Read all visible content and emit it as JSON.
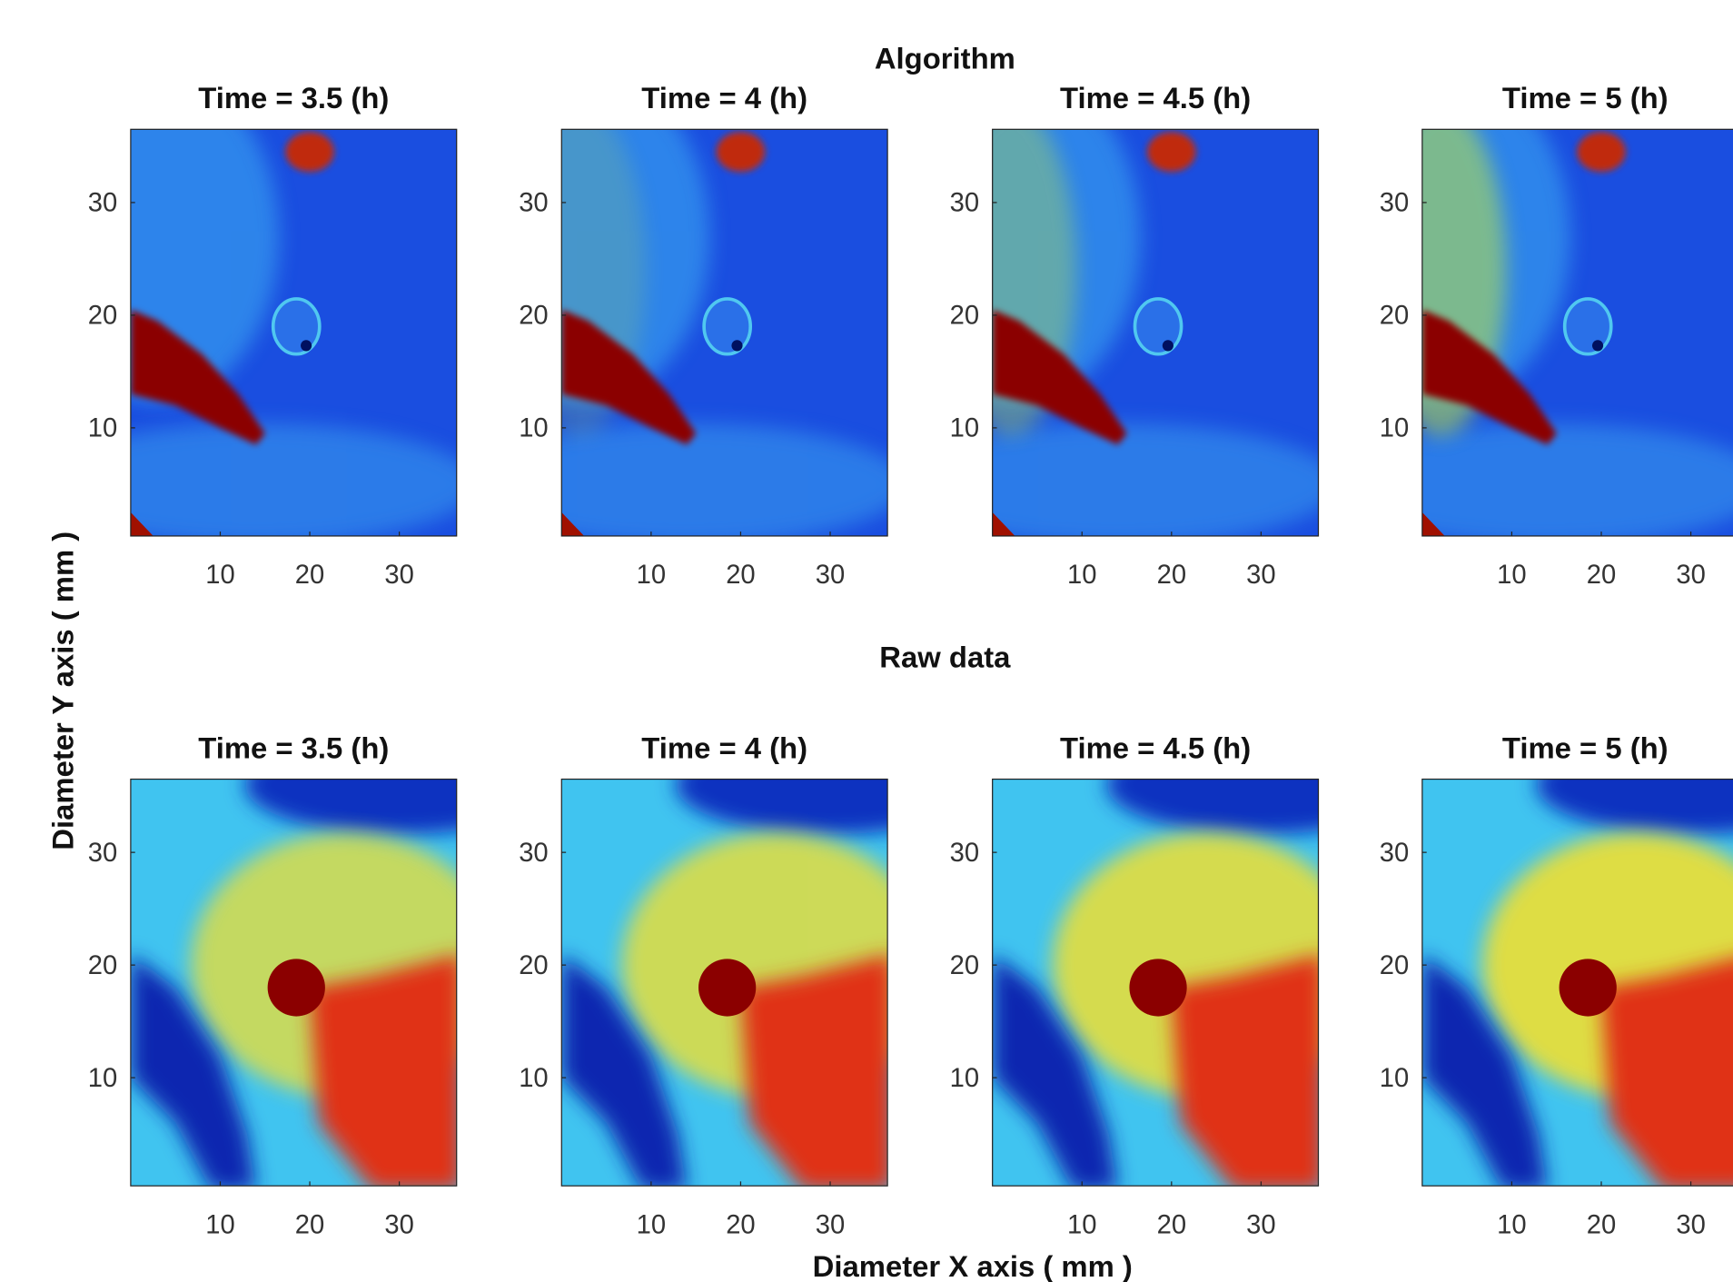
{
  "figure": {
    "row_titles": [
      "Algorithm",
      "Raw data"
    ],
    "xlabel": "Diameter X axis ( mm )",
    "ylabel": "Diameter Y axis ( mm )"
  },
  "chart_data": [
    {
      "type": "heatmap",
      "title": "Time = 3.5 (h)",
      "xlim": [
        0,
        36.4
      ],
      "ylim": [
        0.4,
        36.5
      ],
      "xticks": [
        10,
        20,
        30
      ],
      "yticks": [
        10,
        20,
        30
      ]
    },
    {
      "type": "heatmap",
      "title": "Time = 4 (h)",
      "xlim": [
        0,
        36.4
      ],
      "ylim": [
        0.4,
        36.5
      ],
      "xticks": [
        10,
        20,
        30
      ],
      "yticks": [
        10,
        20,
        30
      ]
    },
    {
      "type": "heatmap",
      "title": "Time = 4.5 (h)",
      "xlim": [
        0,
        36.4
      ],
      "ylim": [
        0.4,
        36.5
      ],
      "xticks": [
        10,
        20,
        30
      ],
      "yticks": [
        10,
        20,
        30
      ]
    },
    {
      "type": "heatmap",
      "title": "Time = 5 (h)",
      "xlim": [
        0,
        36.4
      ],
      "ylim": [
        0.4,
        36.5
      ],
      "xticks": [
        10,
        20,
        30
      ],
      "yticks": [
        10,
        20,
        30
      ]
    },
    {
      "type": "heatmap",
      "title": "Time = 3.5 (h)",
      "xlim": [
        0,
        36.4
      ],
      "ylim": [
        0.4,
        36.5
      ],
      "xticks": [
        10,
        20,
        30
      ],
      "yticks": [
        10,
        20,
        30
      ]
    },
    {
      "type": "heatmap",
      "title": "Time = 4 (h)",
      "xlim": [
        0,
        36.4
      ],
      "ylim": [
        0.4,
        36.5
      ],
      "xticks": [
        10,
        20,
        30
      ],
      "yticks": [
        10,
        20,
        30
      ]
    },
    {
      "type": "heatmap",
      "title": "Time = 4.5 (h)",
      "xlim": [
        0,
        36.4
      ],
      "ylim": [
        0.4,
        36.5
      ],
      "xticks": [
        10,
        20,
        30
      ],
      "yticks": [
        10,
        20,
        30
      ]
    },
    {
      "type": "heatmap",
      "title": "Time = 5 (h)",
      "xlim": [
        0,
        36.4
      ],
      "ylim": [
        0.4,
        36.5
      ],
      "xticks": [
        10,
        20,
        30
      ],
      "yticks": [
        10,
        20,
        30
      ]
    }
  ]
}
